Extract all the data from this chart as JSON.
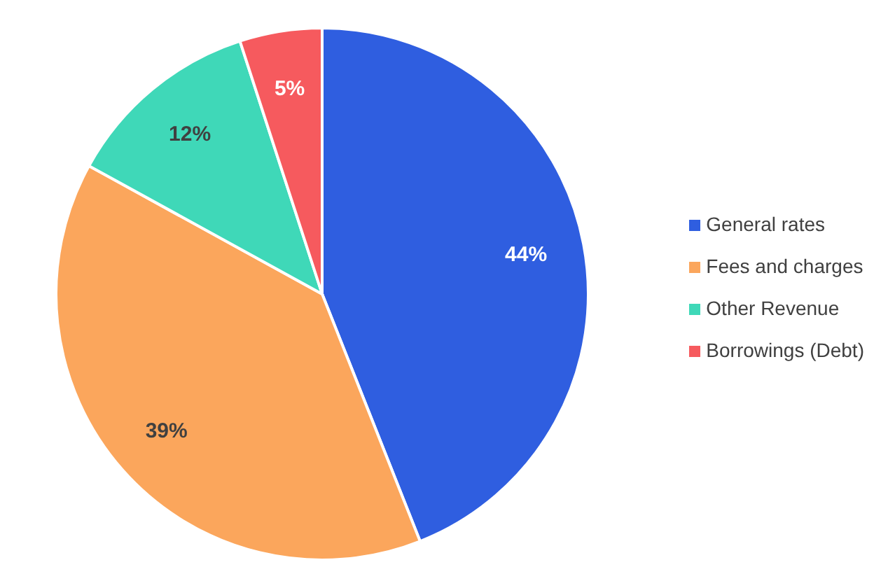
{
  "chart_data": {
    "type": "pie",
    "categories": [
      "General rates",
      "Fees and charges",
      "Other Revenue",
      "Borrowings (Debt)"
    ],
    "values": [
      44,
      39,
      12,
      5
    ],
    "colors": [
      "#2f5ee0",
      "#fba65c",
      "#3fd8b8",
      "#f65a5e"
    ],
    "value_labels": [
      "44%",
      "39%",
      "12%",
      "5%"
    ],
    "legend": "right"
  }
}
